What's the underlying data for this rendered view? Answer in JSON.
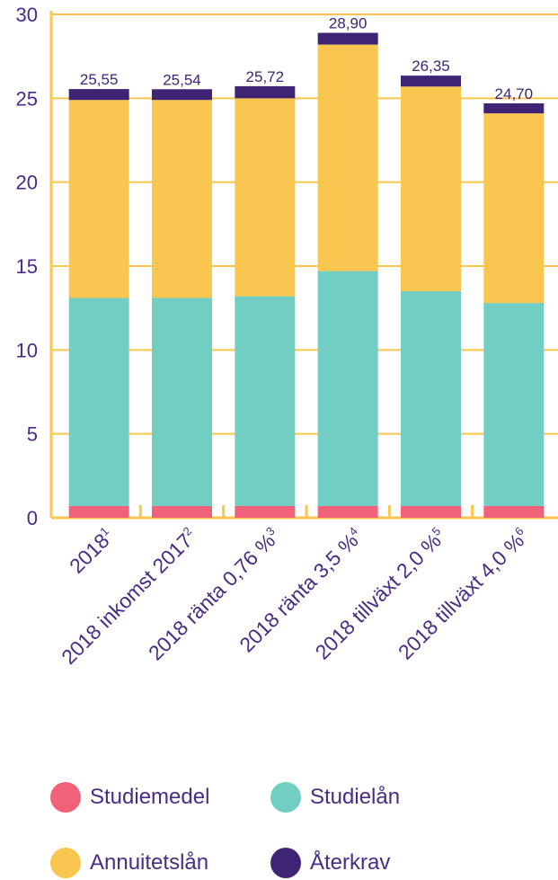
{
  "chart_data": {
    "type": "bar",
    "stacked": true,
    "ylim": [
      0,
      30
    ],
    "yticks": [
      "0",
      "5",
      "10",
      "15",
      "20",
      "25",
      "30"
    ],
    "grid": true,
    "categories": [
      {
        "label": "2018",
        "note": "1"
      },
      {
        "label": "2018 inkomst 2017",
        "note": "2"
      },
      {
        "label": "2018 ränta 0,76 %",
        "note": "3"
      },
      {
        "label": "2018 ränta 3,5 %",
        "note": "4"
      },
      {
        "label": "2018 tillväxt 2,0 %",
        "note": "5"
      },
      {
        "label": "2018 tillväxt 4,0 %",
        "note": "6"
      }
    ],
    "series": [
      {
        "name": "Studiemedel",
        "color": "#f0627a",
        "values": [
          0.7,
          0.7,
          0.7,
          0.7,
          0.7,
          0.7
        ]
      },
      {
        "name": "Studielån",
        "color": "#72cdc2",
        "values": [
          12.4,
          12.4,
          12.5,
          14.0,
          12.8,
          12.1
        ]
      },
      {
        "name": "Annuitetslån",
        "color": "#f9c64f",
        "values": [
          11.8,
          11.8,
          11.8,
          13.5,
          12.2,
          11.3
        ]
      },
      {
        "name": "Återkrav",
        "color": "#3f2476",
        "values": [
          0.65,
          0.64,
          0.72,
          0.7,
          0.65,
          0.6
        ]
      }
    ],
    "totals": [
      "25,55",
      "25,54",
      "25,72",
      "28,90",
      "26,35",
      "24,70"
    ],
    "total_values": [
      25.55,
      25.54,
      25.72,
      28.9,
      26.35,
      24.7
    ],
    "legend_position": "bottom"
  },
  "legend": {
    "items": [
      {
        "label": "Studiemedel",
        "color": "#f0627a"
      },
      {
        "label": "Studielån",
        "color": "#72cdc2"
      },
      {
        "label": "Annuitetslån",
        "color": "#f9c64f"
      },
      {
        "label": "Återkrav",
        "color": "#3f2476"
      }
    ]
  },
  "colors": {
    "axis": "#f9c64f",
    "grid": "#f9c64f",
    "text": "#4a2b85"
  }
}
